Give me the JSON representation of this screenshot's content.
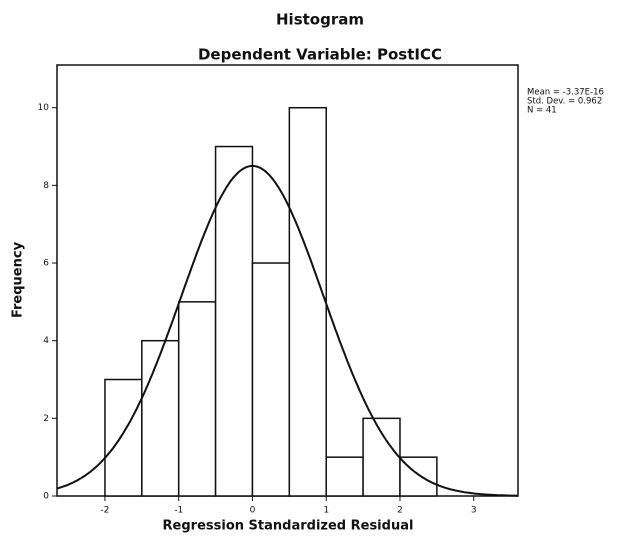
{
  "chart_data": {
    "type": "histogram",
    "title": "Histogram",
    "subtitle": "Dependent Variable: PostICC",
    "x_label": "Regression Standardized Residual",
    "y_label": "Frequency",
    "bins": [
      -2,
      -1.5,
      -1,
      -0.5,
      0,
      0.5,
      1,
      1.5,
      2,
      2.5
    ],
    "counts": [
      3,
      4,
      5,
      9,
      6,
      10,
      1,
      2,
      1
    ],
    "color": "#ffffff",
    "xlim": [
      -2.65,
      3.6
    ],
    "xticks": [
      -2,
      -1,
      0,
      1,
      2,
      3
    ],
    "ylim": [
      0,
      11.1
    ],
    "yticks": [
      0,
      2,
      4,
      6,
      8,
      10
    ],
    "stats": [
      {
        "value": -3.37e-16,
        "label": "Mean = -3.37E-16"
      },
      {
        "value": 0.962,
        "label": "Std. Dev. = 0.962"
      },
      {
        "value": 41,
        "label": "N = 41"
      }
    ]
  }
}
